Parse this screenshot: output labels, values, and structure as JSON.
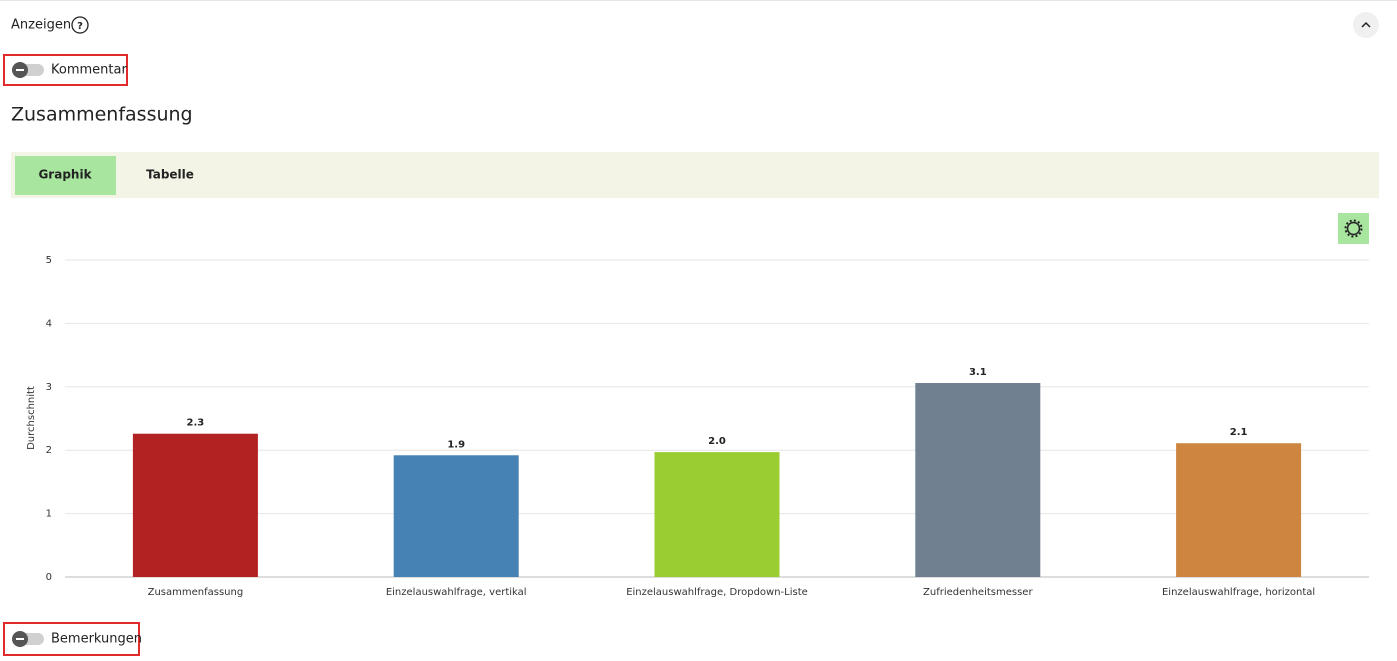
{
  "header": {
    "title": "Anzeigen",
    "help": "?"
  },
  "toggles": [
    "Kommentar",
    "Bemerkungen"
  ],
  "section_title": "Zusammenfassung",
  "tabs": [
    "Graphik",
    "Tabelle"
  ],
  "chart_data": {
    "type": "bar",
    "y_label": "Durchschnitt",
    "categories": [
      "Zusammenfassung",
      "Einzelauswahlfrage, vertikal",
      "Einzelauswahlfrage, Dropdown-Liste",
      "Zufriedenheitsmesser",
      "Einzelauswahlfrage, horizontal"
    ],
    "values": [
      2.26,
      1.92,
      1.97,
      3.06,
      2.11
    ],
    "value_labels": [
      "2.3",
      "1.9",
      "2.0",
      "3.1",
      "2.1"
    ],
    "colors": [
      "#b22222",
      "#4682b4",
      "#9acd32",
      "#708090",
      "#cd853f"
    ],
    "ylim": [
      0,
      5
    ],
    "yticks": [
      0,
      1,
      2,
      3,
      4,
      5
    ],
    "grid": true
  }
}
